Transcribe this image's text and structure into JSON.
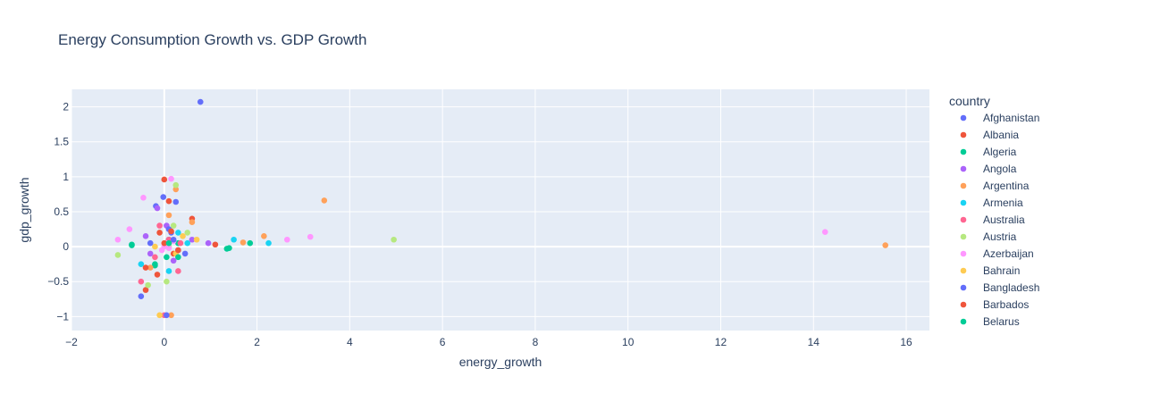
{
  "chart_data": {
    "type": "scatter",
    "title": "Energy Consumption Growth vs. GDP Growth",
    "xlabel": "energy_growth",
    "ylabel": "gdp_growth",
    "xlim": [
      -2,
      16.5
    ],
    "ylim": [
      -1.2,
      2.25
    ],
    "x_ticks": [
      -2,
      0,
      2,
      4,
      6,
      8,
      10,
      12,
      14,
      16
    ],
    "y_ticks": [
      -1,
      -0.5,
      0,
      0.5,
      1,
      1.5,
      2
    ],
    "y_tick_labels": [
      "−1",
      "−0.5",
      "0",
      "0.5",
      "1",
      "1.5",
      "2"
    ],
    "x_tick_labels": [
      "−2",
      "0",
      "2",
      "4",
      "6",
      "8",
      "10",
      "12",
      "14",
      "16"
    ],
    "grid": true,
    "legend_title": "country",
    "legend_position": "right",
    "series": [
      {
        "name": "Afghanistan",
        "color": "#636efa",
        "points": [
          [
            0.78,
            2.07
          ],
          [
            -0.02,
            0.71
          ],
          [
            -0.18,
            0.58
          ],
          [
            -0.5,
            -0.71
          ],
          [
            0.25,
            0.64
          ],
          [
            0.1,
            0.1
          ],
          [
            0.3,
            -0.05
          ],
          [
            0.15,
            0.2
          ]
        ]
      },
      {
        "name": "Albania",
        "color": "#EF553B",
        "points": [
          [
            0.0,
            0.96
          ],
          [
            -0.4,
            -0.62
          ],
          [
            0.6,
            0.4
          ],
          [
            1.1,
            0.03
          ],
          [
            0.1,
            0.65
          ],
          [
            0.2,
            -0.1
          ],
          [
            -0.1,
            0.2
          ]
        ]
      },
      {
        "name": "Algeria",
        "color": "#00cc96",
        "points": [
          [
            1.4,
            -0.02
          ],
          [
            1.85,
            0.05
          ],
          [
            -0.7,
            0.03
          ],
          [
            -0.2,
            -0.27
          ],
          [
            0.1,
            0.1
          ],
          [
            0.3,
            0.05
          ],
          [
            0.05,
            -0.15
          ]
        ]
      },
      {
        "name": "Angola",
        "color": "#ab63fa",
        "points": [
          [
            -0.15,
            0.55
          ],
          [
            -0.4,
            0.15
          ],
          [
            0.2,
            -0.2
          ],
          [
            0.6,
            0.1
          ],
          [
            0.95,
            0.05
          ],
          [
            0.05,
            0.3
          ],
          [
            -0.3,
            -0.1
          ]
        ]
      },
      {
        "name": "Argentina",
        "color": "#FFA15A",
        "points": [
          [
            3.45,
            0.66
          ],
          [
            15.55,
            0.02
          ],
          [
            2.15,
            0.15
          ],
          [
            1.7,
            0.06
          ],
          [
            0.25,
            0.82
          ],
          [
            0.1,
            0.45
          ],
          [
            -0.3,
            -0.3
          ],
          [
            0.6,
            0.35
          ],
          [
            0.15,
            -0.98
          ]
        ]
      },
      {
        "name": "Armenia",
        "color": "#19d3f3",
        "points": [
          [
            2.25,
            0.05
          ],
          [
            1.5,
            0.1
          ],
          [
            -0.5,
            -0.25
          ],
          [
            0.5,
            0.05
          ],
          [
            0.1,
            -0.35
          ],
          [
            0.3,
            0.2
          ]
        ]
      },
      {
        "name": "Australia",
        "color": "#FF6692",
        "points": [
          [
            -0.1,
            0.3
          ],
          [
            -0.5,
            -0.5
          ],
          [
            0.0,
            -0.98
          ],
          [
            0.3,
            -0.35
          ],
          [
            0.1,
            0.1
          ],
          [
            -0.2,
            -0.15
          ],
          [
            0.35,
            0.05
          ]
        ]
      },
      {
        "name": "Austria",
        "color": "#B6E880",
        "points": [
          [
            4.95,
            0.1
          ],
          [
            0.25,
            0.88
          ],
          [
            0.05,
            -0.5
          ],
          [
            -0.35,
            -0.55
          ],
          [
            0.2,
            0.3
          ],
          [
            0.5,
            0.2
          ],
          [
            -1.0,
            -0.12
          ],
          [
            0.1,
            0.0
          ]
        ]
      },
      {
        "name": "Azerbaijan",
        "color": "#FF97FF",
        "points": [
          [
            14.25,
            0.21
          ],
          [
            3.15,
            0.14
          ],
          [
            2.65,
            0.1
          ],
          [
            -0.45,
            0.7
          ],
          [
            0.15,
            0.97
          ],
          [
            -0.75,
            0.25
          ],
          [
            0.0,
            0.0
          ],
          [
            0.05,
            0.05
          ],
          [
            -0.05,
            -0.05
          ],
          [
            0.1,
            -0.02
          ],
          [
            -1.0,
            0.1
          ],
          [
            0.2,
            0.08
          ]
        ]
      },
      {
        "name": "Bahrain",
        "color": "#FECB52",
        "points": [
          [
            -0.1,
            -0.98
          ],
          [
            0.4,
            0.15
          ],
          [
            0.1,
            0.05
          ],
          [
            -0.2,
            0.0
          ],
          [
            0.7,
            0.1
          ],
          [
            0.25,
            -0.1
          ]
        ]
      },
      {
        "name": "Bangladesh",
        "color": "#636efa",
        "points": [
          [
            0.05,
            -0.98
          ],
          [
            0.45,
            -0.1
          ],
          [
            0.2,
            0.1
          ],
          [
            -0.3,
            0.05
          ],
          [
            0.1,
            0.25
          ]
        ]
      },
      {
        "name": "Barbados",
        "color": "#EF553B",
        "points": [
          [
            -0.4,
            -0.3
          ],
          [
            0.0,
            0.05
          ],
          [
            0.3,
            -0.05
          ],
          [
            0.15,
            0.22
          ],
          [
            -0.15,
            -0.4
          ]
        ]
      },
      {
        "name": "Belarus",
        "color": "#00cc96",
        "points": [
          [
            1.35,
            -0.03
          ],
          [
            -0.7,
            0.02
          ],
          [
            -0.2,
            -0.25
          ],
          [
            0.1,
            0.05
          ],
          [
            0.3,
            -0.15
          ]
        ]
      }
    ]
  }
}
